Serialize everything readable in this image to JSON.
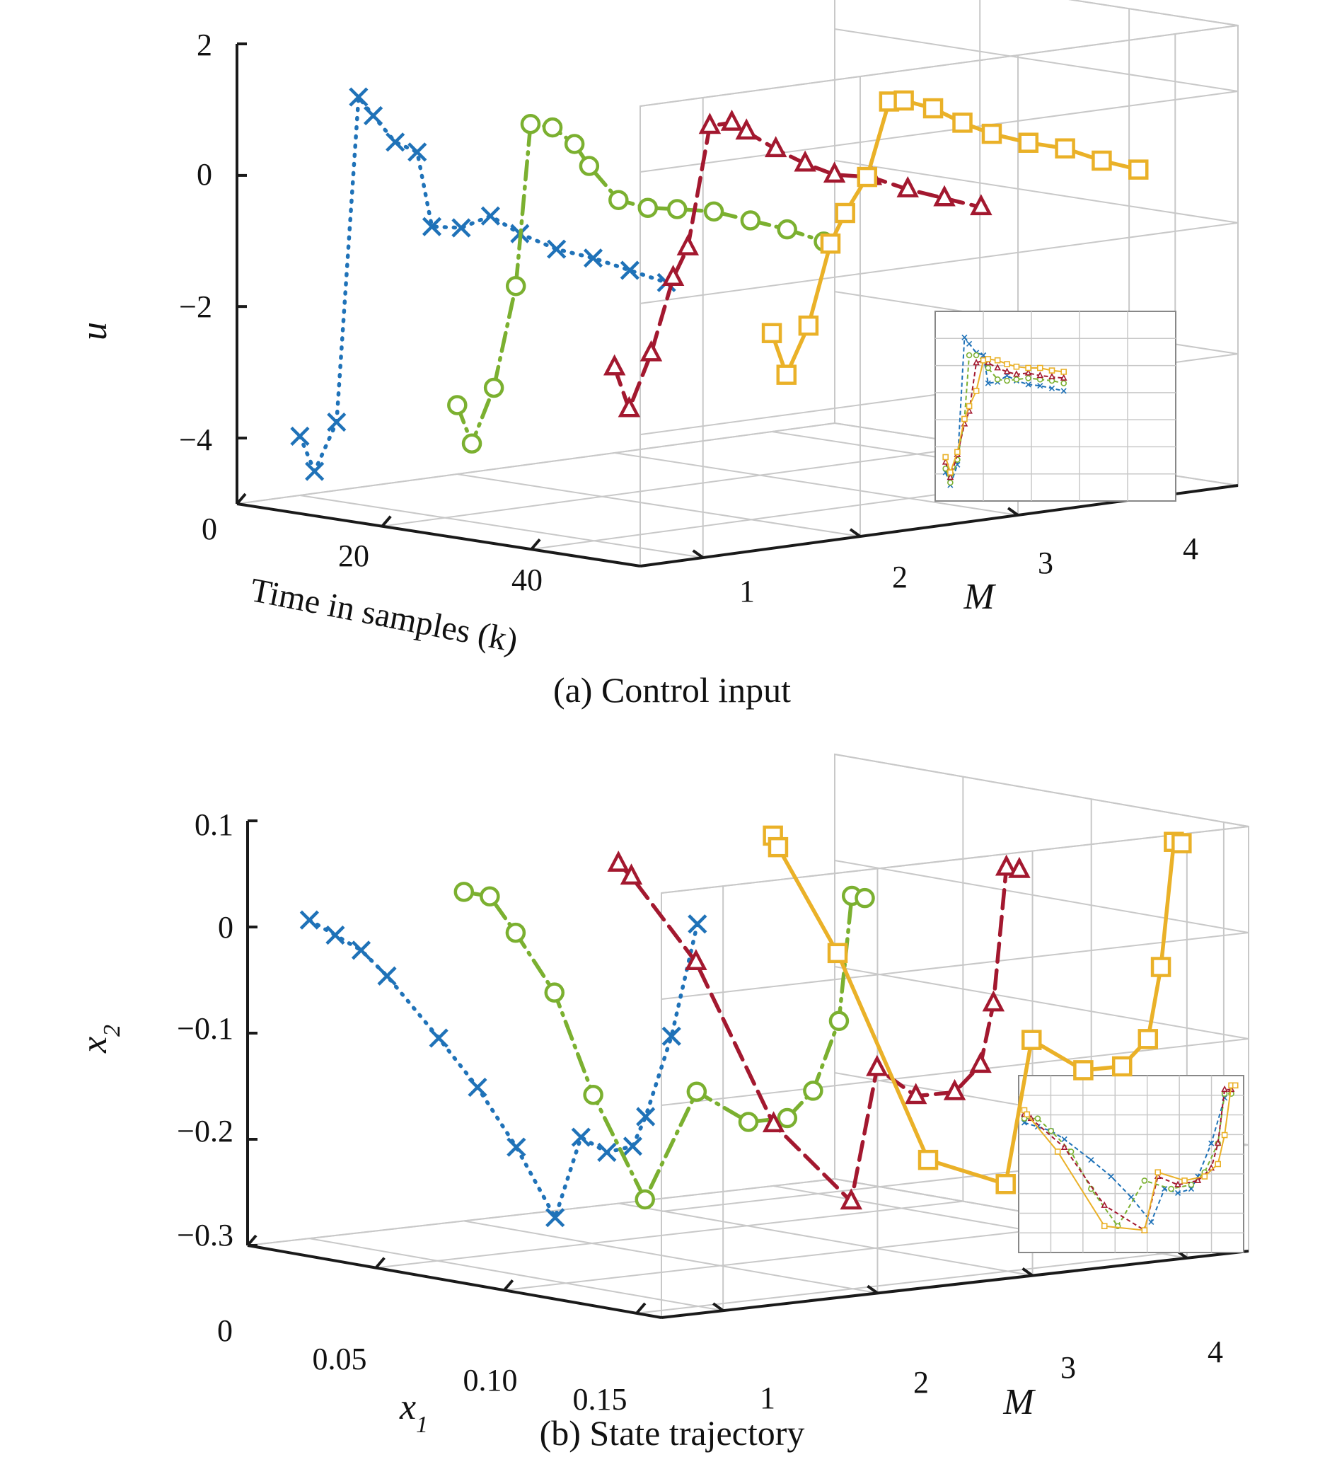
{
  "colors": {
    "M1": "#1f72b8",
    "M2": "#7bb030",
    "M3": "#a3182f",
    "M4": "#eab128",
    "grid": "#c8c8c8",
    "axis": "#1a1a1a"
  },
  "chart_data": [
    {
      "type": "line3d",
      "caption": "(a) Control input",
      "xlabel": "Time in samples (k)",
      "ylabel": "M",
      "zlabel": "u",
      "x_ticks": [
        "0",
        "20",
        "40"
      ],
      "y_ticks": [
        "1",
        "2",
        "3",
        "4"
      ],
      "z_ticks": [
        "2",
        "0",
        "−2",
        "−4"
      ],
      "xlim": [
        0,
        55
      ],
      "ylim": [
        0.6,
        4.4
      ],
      "zlim": [
        -5,
        2
      ],
      "series": [
        {
          "M": 1,
          "marker": "x",
          "dash": "dotted",
          "k": [
            0,
            2,
            5,
            8,
            10,
            13,
            16,
            18,
            22,
            26,
            30,
            35,
            40,
            45,
            50
          ],
          "u": [
            -4.1,
            -4.6,
            -3.8,
            1.2,
            0.95,
            0.6,
            0.5,
            -0.6,
            -0.55,
            -0.3,
            -0.5,
            -0.65,
            -0.7,
            -0.8,
            -0.9
          ]
        },
        {
          "M": 2,
          "marker": "o",
          "dash": "dashdot",
          "k": [
            0,
            2,
            5,
            8,
            10,
            13,
            16,
            18,
            22,
            26,
            30,
            35,
            40,
            45,
            50
          ],
          "u": [
            -3.95,
            -4.5,
            -3.6,
            -2.0,
            0.5,
            0.5,
            0.3,
            0.0,
            -0.45,
            -0.5,
            -0.45,
            -0.4,
            -0.45,
            -0.5,
            -0.6
          ]
        },
        {
          "M": 3,
          "marker": "^",
          "dash": "dashed",
          "k": [
            0,
            2,
            5,
            8,
            10,
            13,
            16,
            18,
            22,
            26,
            30,
            35,
            40,
            45,
            50
          ],
          "u": [
            -3.7,
            -4.3,
            -3.4,
            -2.2,
            -1.7,
            0.2,
            0.3,
            0.2,
            0.0,
            -0.15,
            -0.25,
            -0.2,
            -0.3,
            -0.35,
            -0.4
          ]
        },
        {
          "M": 4,
          "marker": "s",
          "dash": "solid",
          "k": [
            0,
            2,
            5,
            8,
            10,
            13,
            16,
            18,
            22,
            26,
            30,
            35,
            40,
            45,
            50
          ],
          "u": [
            -3.5,
            -4.1,
            -3.3,
            -2.0,
            -1.5,
            -0.9,
            0.3,
            0.35,
            0.3,
            0.15,
            0.05,
            0.0,
            0.0,
            -0.1,
            -0.15
          ]
        }
      ]
    },
    {
      "type": "line3d",
      "caption": "(b) State trajectory",
      "xlabel": "x1",
      "ylabel": "M",
      "zlabel": "x2",
      "x_ticks": [
        "0",
        "0.05",
        "0.10",
        "0.15"
      ],
      "y_ticks": [
        "1",
        "2",
        "3",
        "4"
      ],
      "z_ticks": [
        "0.1",
        "0",
        "−0.1",
        "−0.2",
        "−0.3"
      ],
      "xlim": [
        0,
        0.16
      ],
      "ylim": [
        0.6,
        4.4
      ],
      "zlim": [
        -0.3,
        0.1
      ],
      "series": [
        {
          "M": 1,
          "marker": "x",
          "dash": "dotted",
          "x1": [
            0.0,
            0.01,
            0.02,
            0.03,
            0.05,
            0.065,
            0.08,
            0.095,
            0.105,
            0.115,
            0.125,
            0.13,
            0.14,
            0.15
          ],
          "x2": [
            0.0,
            -0.01,
            -0.02,
            -0.04,
            -0.09,
            -0.13,
            -0.18,
            -0.24,
            -0.16,
            -0.17,
            -0.16,
            -0.13,
            -0.05,
            0.06
          ]
        },
        {
          "M": 2,
          "marker": "o",
          "dash": "dashdot",
          "x1": [
            0.0,
            0.01,
            0.02,
            0.035,
            0.05,
            0.07,
            0.09,
            0.11,
            0.125,
            0.135,
            0.145,
            0.15,
            0.155
          ],
          "x2": [
            0.01,
            0.01,
            -0.02,
            -0.07,
            -0.16,
            -0.25,
            -0.14,
            -0.16,
            -0.15,
            -0.12,
            -0.05,
            0.07,
            0.07
          ]
        },
        {
          "M": 3,
          "marker": "^",
          "dash": "dashed",
          "x1": [
            0.0,
            0.005,
            0.03,
            0.06,
            0.09,
            0.1,
            0.115,
            0.13,
            0.14,
            0.145,
            0.15,
            0.155
          ],
          "x2": [
            0.02,
            0.01,
            -0.06,
            -0.2,
            -0.26,
            -0.13,
            -0.15,
            -0.14,
            -0.11,
            -0.05,
            0.08,
            0.08
          ]
        },
        {
          "M": 4,
          "marker": "s",
          "dash": "solid",
          "x1": [
            0.0,
            0.002,
            0.025,
            0.06,
            0.09,
            0.1,
            0.12,
            0.135,
            0.145,
            0.15,
            0.155,
            0.158
          ],
          "x2": [
            0.03,
            0.02,
            -0.07,
            -0.25,
            -0.26,
            -0.12,
            -0.14,
            -0.13,
            -0.1,
            -0.03,
            0.09,
            0.09
          ]
        }
      ]
    }
  ]
}
